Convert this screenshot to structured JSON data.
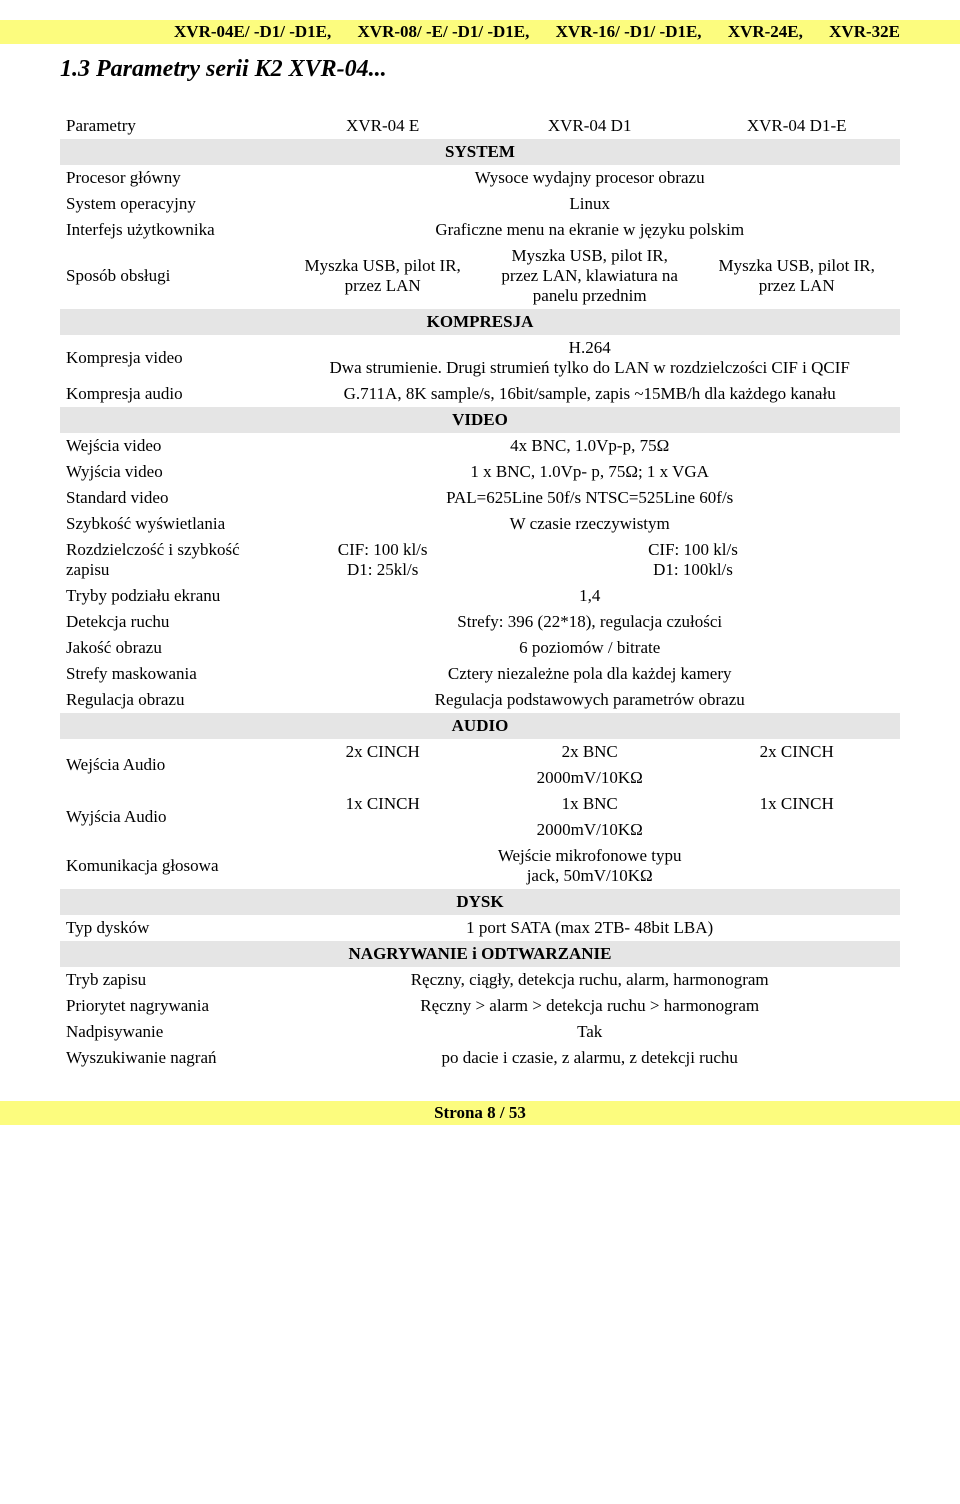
{
  "header_models": {
    "m1": "XVR-04E/ -D1/ -D1E,",
    "m2": "XVR-08/ -E/ -D1/ -D1E,",
    "m3": "XVR-16/ -D1/ -D1E,",
    "m4": "XVR-24E,",
    "m5": "XVR-32E"
  },
  "section_title": "1.3 Parametry serii K2 XVR-04...",
  "table": {
    "head": {
      "label": "Parametry",
      "c1": "XVR-04 E",
      "c2": "XVR-04 D1",
      "c3": "XVR-04 D1-E"
    },
    "bands": {
      "system": "SYSTEM",
      "kompresja": "KOMPRESJA",
      "video": "VIDEO",
      "audio": "AUDIO",
      "dysk": "DYSK",
      "nagrywanie": "NAGRYWANIE i ODTWARZANIE"
    },
    "system": {
      "procesor": {
        "label": "Procesor główny",
        "value": "Wysoce wydajny procesor obrazu"
      },
      "os": {
        "label": "System operacyjny",
        "value": "Linux"
      },
      "ui": {
        "label": "Interfejs użytkownika",
        "value": "Graficzne menu na ekranie w języku polskim"
      },
      "sposob": {
        "label": "Sposób obsługi",
        "c1": "Myszka USB, pilot IR, przez LAN",
        "c2": "Myszka USB, pilot IR, przez LAN, klawiatura na panelu przednim",
        "c3": "Myszka USB, pilot IR, przez LAN"
      }
    },
    "kompresja": {
      "video": {
        "label": "Kompresja video",
        "line1": "H.264",
        "line2": "Dwa strumienie. Drugi strumień tylko do LAN w rozdzielczości CIF i QCIF"
      },
      "audio": {
        "label": "Kompresja audio",
        "value": "G.711A, 8K sample/s, 16bit/sample, zapis ~15MB/h dla każdego kanału"
      }
    },
    "video": {
      "wejscia": {
        "label": "Wejścia video",
        "value": "4x BNC, 1.0Vp-p, 75Ω"
      },
      "wyjscia": {
        "label": "Wyjścia video",
        "value": "1 x BNC, 1.0Vp- p, 75Ω;  1 x VGA"
      },
      "standard": {
        "label": "Standard video",
        "value": "PAL=625Line 50f/s  NTSC=525Line 60f/s"
      },
      "szybkosc": {
        "label": "Szybkość wyświetlania",
        "value": "W czasie rzeczywistym"
      },
      "rozdz": {
        "label": "Rozdzielczość i szybkość zapisu",
        "c1": "CIF: 100 kl/s\nD1: 25kl/s",
        "c23": "CIF: 100 kl/s\nD1: 100kl/s"
      },
      "tryby": {
        "label": "Tryby podziału ekranu",
        "value": "1,4"
      },
      "detekcja": {
        "label": "Detekcja ruchu",
        "value": "Strefy:  396 (22*18), regulacja czułości"
      },
      "jakosc": {
        "label": "Jakość obrazu",
        "value": "6 poziomów / bitrate"
      },
      "strefy": {
        "label": "Strefy maskowania",
        "value": "Cztery niezależne pola dla każdej kamery"
      },
      "regulacja": {
        "label": "Regulacja obrazu",
        "value": "Regulacja podstawowych parametrów obrazu"
      }
    },
    "audio": {
      "wejscia": {
        "label": "Wejścia Audio",
        "r1c1": "2x CINCH",
        "r1c2": "2x BNC",
        "r1c3": "2x CINCH",
        "r2": "2000mV/10KΩ"
      },
      "wyjscia": {
        "label": "Wyjścia Audio",
        "r1c1": "1x CINCH",
        "r1c2": "1x BNC",
        "r1c3": "1x CINCH",
        "r2": "2000mV/10KΩ"
      },
      "kom": {
        "label": "Komunikacja głosowa",
        "c2": "Wejście mikrofonowe typu jack, 50mV/10KΩ"
      }
    },
    "dysk": {
      "typ": {
        "label": "Typ dysków",
        "value": "1 port SATA (max 2TB- 48bit LBA)"
      }
    },
    "nagrywanie": {
      "tryb": {
        "label": "Tryb zapisu",
        "value": "Ręczny, ciągły, detekcja ruchu, alarm, harmonogram"
      },
      "priorytet": {
        "label": "Priorytet nagrywania",
        "value": "Ręczny > alarm > detekcja ruchu > harmonogram"
      },
      "nadpis": {
        "label": "Nadpisywanie",
        "value": "Tak"
      },
      "wyszuk": {
        "label": "Wyszukiwanie nagrań",
        "value": "po dacie i czasie, z alarmu, z detekcji ruchu"
      }
    }
  },
  "footer": "Strona 8 / 53"
}
